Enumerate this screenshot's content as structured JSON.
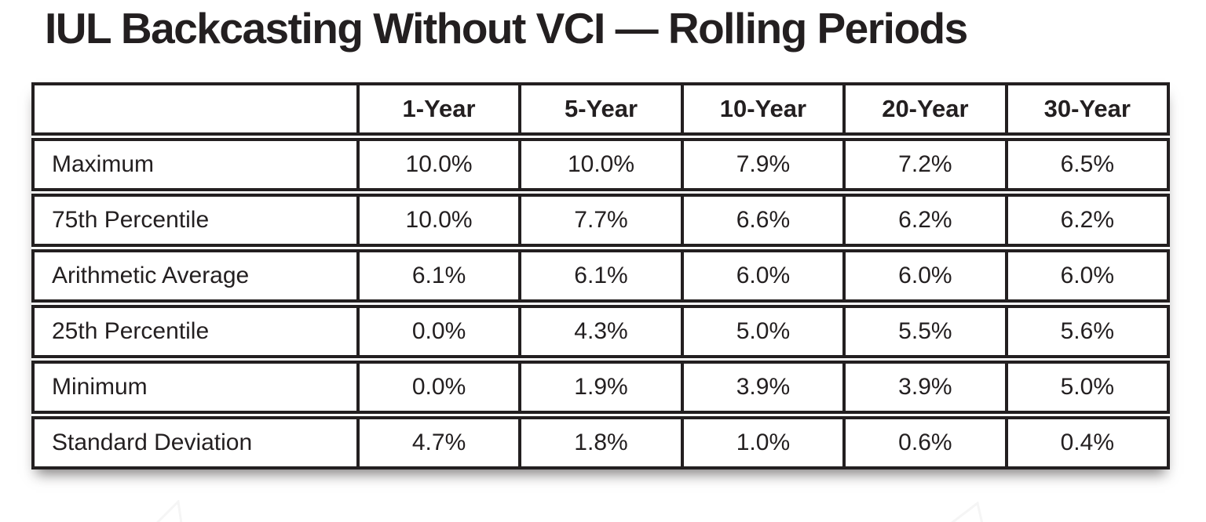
{
  "title": "IUL Backcasting Without VCI — Rolling Periods",
  "chart_data": {
    "type": "table",
    "title": "IUL Backcasting Without VCI — Rolling Periods",
    "columns": [
      "",
      "1-Year",
      "5-Year",
      "10-Year",
      "20-Year",
      "30-Year"
    ],
    "rows": [
      {
        "label": "Maximum",
        "values": [
          "10.0%",
          "10.0%",
          "7.9%",
          "7.2%",
          "6.5%"
        ]
      },
      {
        "label": "75th Percentile",
        "values": [
          "10.0%",
          "7.7%",
          "6.6%",
          "6.2%",
          "6.2%"
        ]
      },
      {
        "label": "Arithmetic Average",
        "values": [
          "6.1%",
          "6.1%",
          "6.0%",
          "6.0%",
          "6.0%"
        ]
      },
      {
        "label": "25th Percentile",
        "values": [
          "0.0%",
          "4.3%",
          "5.0%",
          "5.5%",
          "5.6%"
        ]
      },
      {
        "label": "Minimum",
        "values": [
          "0.0%",
          "1.9%",
          "3.9%",
          "3.9%",
          "5.0%"
        ]
      },
      {
        "label": "Standard Deviation",
        "values": [
          "4.7%",
          "1.8%",
          "1.0%",
          "0.6%",
          "0.4%"
        ]
      }
    ],
    "layout_hints": {
      "grid": "heavy black cell borders, double rules between rows",
      "value_alignment": "center",
      "label_alignment": "left",
      "drop_shadow_below_table": true
    }
  },
  "colors": {
    "text": "#231f20",
    "border": "#231f20",
    "background": "#ffffff",
    "shadow": "rgba(30,26,26,0.55)",
    "watermark": "#ededed"
  }
}
